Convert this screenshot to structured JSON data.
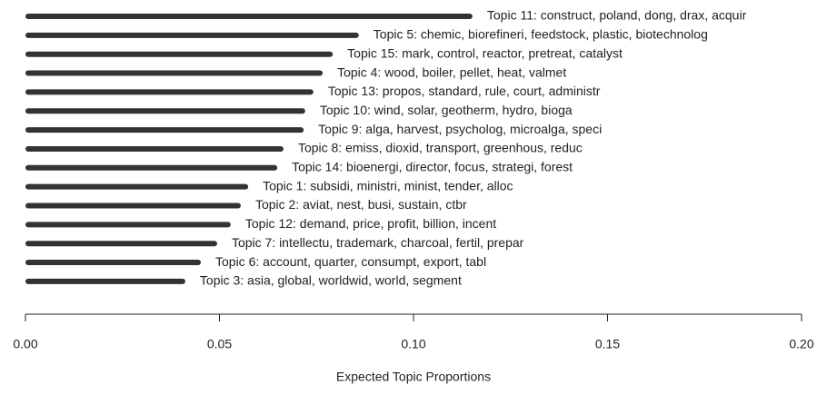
{
  "chart_data": {
    "type": "bar",
    "orientation": "horizontal",
    "x_label": "Expected Topic Proportions",
    "categories": [
      "Topic 11: construct, poland, dong, drax, acquir",
      "Topic 5: chemic, biorefineri, feedstock, plastic, biotechnolog",
      "Topic 15: mark, control, reactor, pretreat, catalyst",
      "Topic 4: wood, boiler, pellet, heat, valmet",
      "Topic 13: propos, standard, rule, court, administr",
      "Topic 10: wind, solar, geotherm, hydro, bioga",
      "Topic 9: alga, harvest, psycholog, microalga, speci",
      "Topic 8: emiss, dioxid, transport, greenhous, reduc",
      "Topic 14: bioenergi, director, focus, strategi, forest",
      "Topic 1: subsidi, ministri, minist, tender, alloc",
      "Topic 2: aviat, nest, busi, sustain, ctbr",
      "Topic 12: demand, price, profit, billion, incent",
      "Topic 7: intellectu, trademark, charcoal, fertil, prepar",
      "Topic 6: account, quarter, consumpt, export, tabl",
      "Topic 3: asia, global, worldwid, world, segment"
    ],
    "values": [
      0.1152,
      0.0859,
      0.0792,
      0.0766,
      0.0742,
      0.0721,
      0.0717,
      0.0665,
      0.0649,
      0.0574,
      0.0555,
      0.0529,
      0.0494,
      0.0452,
      0.0412
    ],
    "color": "#333333",
    "xlim": [
      0,
      0.2
    ],
    "xticks": [
      {
        "value": 0,
        "label": "0.00"
      },
      0.05,
      {
        "value": 0.1,
        "label": "0.10"
      },
      0.15,
      {
        "value": 0.2,
        "label": "0.20"
      }
    ],
    "grid": false
  }
}
